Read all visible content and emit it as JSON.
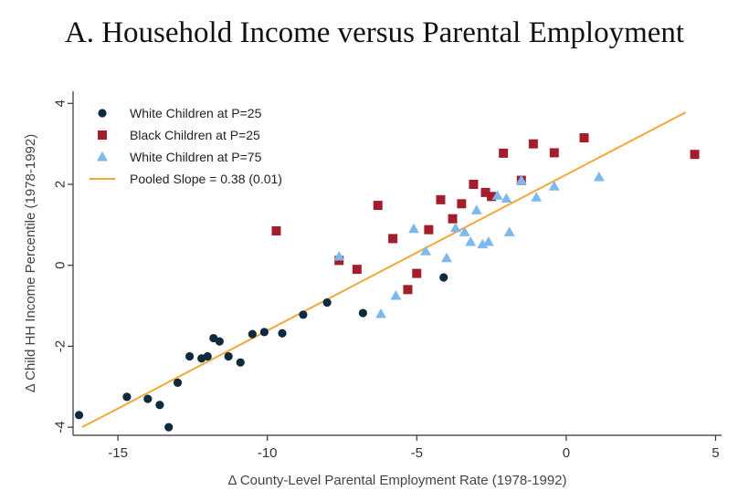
{
  "chart_data": {
    "type": "scatter",
    "title": "A. Household Income versus Parental Employment",
    "xlabel": "Δ County-Level Parental Employment Rate (1978-1992)",
    "ylabel": "Δ Child HH Income Percentile (1978-1992)",
    "xlim": [
      -16.5,
      5.2
    ],
    "ylim": [
      -4.2,
      4.3
    ],
    "xticks": [
      -15,
      -10,
      -5,
      0,
      5
    ],
    "yticks": [
      -4,
      -2,
      0,
      2,
      4
    ],
    "grid": false,
    "legend_position": "top-left",
    "series": [
      {
        "name": "White Children at P=25",
        "marker": "circle",
        "color": "#0f2a3d",
        "points": [
          [
            -16.3,
            -3.7
          ],
          [
            -14.7,
            -3.25
          ],
          [
            -14.0,
            -3.3
          ],
          [
            -13.6,
            -3.45
          ],
          [
            -13.3,
            -4.0
          ],
          [
            -13.0,
            -2.9
          ],
          [
            -12.6,
            -2.25
          ],
          [
            -12.2,
            -2.3
          ],
          [
            -12.0,
            -2.25
          ],
          [
            -11.8,
            -1.8
          ],
          [
            -11.6,
            -1.88
          ],
          [
            -11.3,
            -2.25
          ],
          [
            -10.9,
            -2.4
          ],
          [
            -10.5,
            -1.7
          ],
          [
            -10.1,
            -1.65
          ],
          [
            -9.5,
            -1.68
          ],
          [
            -8.8,
            -1.22
          ],
          [
            -8.0,
            -0.92
          ],
          [
            -6.8,
            -1.18
          ],
          [
            -4.1,
            -0.3
          ]
        ]
      },
      {
        "name": "Black Children at P=25",
        "marker": "square",
        "color": "#a31d2b",
        "points": [
          [
            -9.7,
            0.85
          ],
          [
            -7.6,
            0.12
          ],
          [
            -7.0,
            -0.1
          ],
          [
            -6.3,
            1.48
          ],
          [
            -5.8,
            0.66
          ],
          [
            -5.3,
            -0.6
          ],
          [
            -5.0,
            -0.2
          ],
          [
            -4.6,
            0.88
          ],
          [
            -4.2,
            1.62
          ],
          [
            -3.8,
            1.15
          ],
          [
            -3.5,
            1.52
          ],
          [
            -3.1,
            2.0
          ],
          [
            -2.7,
            1.8
          ],
          [
            -2.5,
            1.7
          ],
          [
            -2.1,
            2.77
          ],
          [
            -1.5,
            2.1
          ],
          [
            -1.1,
            3.0
          ],
          [
            -0.4,
            2.78
          ],
          [
            0.6,
            3.15
          ],
          [
            4.3,
            2.74
          ]
        ]
      },
      {
        "name": "White Children at P=75",
        "marker": "triangle",
        "color": "#7db9ee",
        "points": [
          [
            -7.6,
            0.22
          ],
          [
            -6.2,
            -1.2
          ],
          [
            -5.7,
            -0.75
          ],
          [
            -5.1,
            0.9
          ],
          [
            -4.7,
            0.35
          ],
          [
            -4.0,
            0.18
          ],
          [
            -3.7,
            0.92
          ],
          [
            -3.4,
            0.82
          ],
          [
            -3.2,
            0.58
          ],
          [
            -3.0,
            1.36
          ],
          [
            -2.8,
            0.52
          ],
          [
            -2.6,
            0.58
          ],
          [
            -2.3,
            1.72
          ],
          [
            -2.0,
            1.65
          ],
          [
            -1.9,
            0.82
          ],
          [
            -1.5,
            2.1
          ],
          [
            -1.0,
            1.68
          ],
          [
            -0.4,
            1.95
          ],
          [
            1.1,
            2.18
          ]
        ]
      }
    ],
    "fit_line": {
      "name": "Pooled Slope = 0.38 (0.01)",
      "color": "#f2a73b",
      "x": [
        -16.2,
        4.0
      ],
      "y": [
        -4.0,
        3.78
      ]
    }
  }
}
